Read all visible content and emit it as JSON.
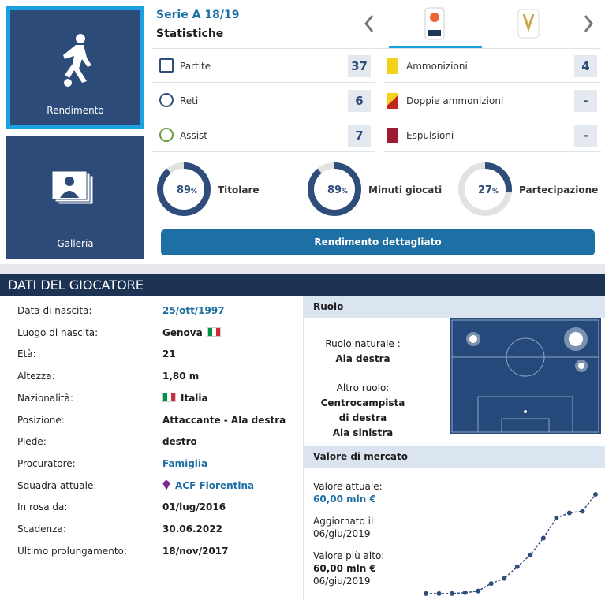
{
  "tiles": [
    {
      "label": "Rendimento"
    },
    {
      "label": "Galleria"
    }
  ],
  "stats": {
    "competition": "Serie A 18/19",
    "subtitle": "Statistiche",
    "left": [
      {
        "label": "Partite",
        "value": 37
      },
      {
        "label": "Reti",
        "value": 6
      },
      {
        "label": "Assist",
        "value": 7
      }
    ],
    "right": [
      {
        "label": "Ammonizioni",
        "value": 4
      },
      {
        "label": "Doppie ammonizioni",
        "value": "-"
      },
      {
        "label": "Espulsioni",
        "value": "-"
      }
    ],
    "donuts": [
      {
        "value": 89,
        "unit": "%",
        "label": "Titolare"
      },
      {
        "value": 89,
        "unit": "%",
        "label": "Minuti giocati"
      },
      {
        "value": 27,
        "unit": "%",
        "label": "Partecipazione gol"
      }
    ],
    "button": "Rendimento dettagliato"
  },
  "player_data": {
    "title": "DATI DEL GIOCATORE",
    "rows": [
      [
        "Data di nascita:",
        "25/ott/1997"
      ],
      [
        "Luogo di nascita:",
        "Genova"
      ],
      [
        "Età:",
        "21"
      ],
      [
        "Altezza:",
        "1,80 m"
      ],
      [
        "Nazionalità:",
        "Italia"
      ],
      [
        "Posizione:",
        "Attaccante - Ala destra"
      ],
      [
        "Piede:",
        "destro"
      ],
      [
        "Procuratore:",
        "Famiglia"
      ],
      [
        "Squadra attuale:",
        "ACF Fiorentina"
      ],
      [
        "In rosa da:",
        "01/lug/2016"
      ],
      [
        "Scadenza:",
        "30.06.2022"
      ],
      [
        "Ultimo prolungamento:",
        "18/nov/2017"
      ]
    ]
  },
  "position": {
    "title": "Ruolo",
    "natural_label": "Ruolo naturale :",
    "natural": "Ala destra",
    "other_label": "Altro ruolo:",
    "other": [
      "Centrocampista di destra",
      "Ala sinistra"
    ]
  },
  "market_value": {
    "title": "Valore di mercato",
    "current_label": "Valore attuale:",
    "current": "60,00 mln €",
    "updated_label": "Aggiornato il:",
    "updated": "06/giu/2019",
    "highest_label": "Valore più alto:",
    "highest": "60,00 mln €",
    "highest_date": "06/giu/2019",
    "chart": {
      "type": "line",
      "color": "#2f4d7a",
      "values": [
        1,
        1,
        1,
        1.5,
        2.5,
        7,
        10,
        17,
        24,
        34,
        46,
        49,
        50,
        60
      ]
    }
  }
}
